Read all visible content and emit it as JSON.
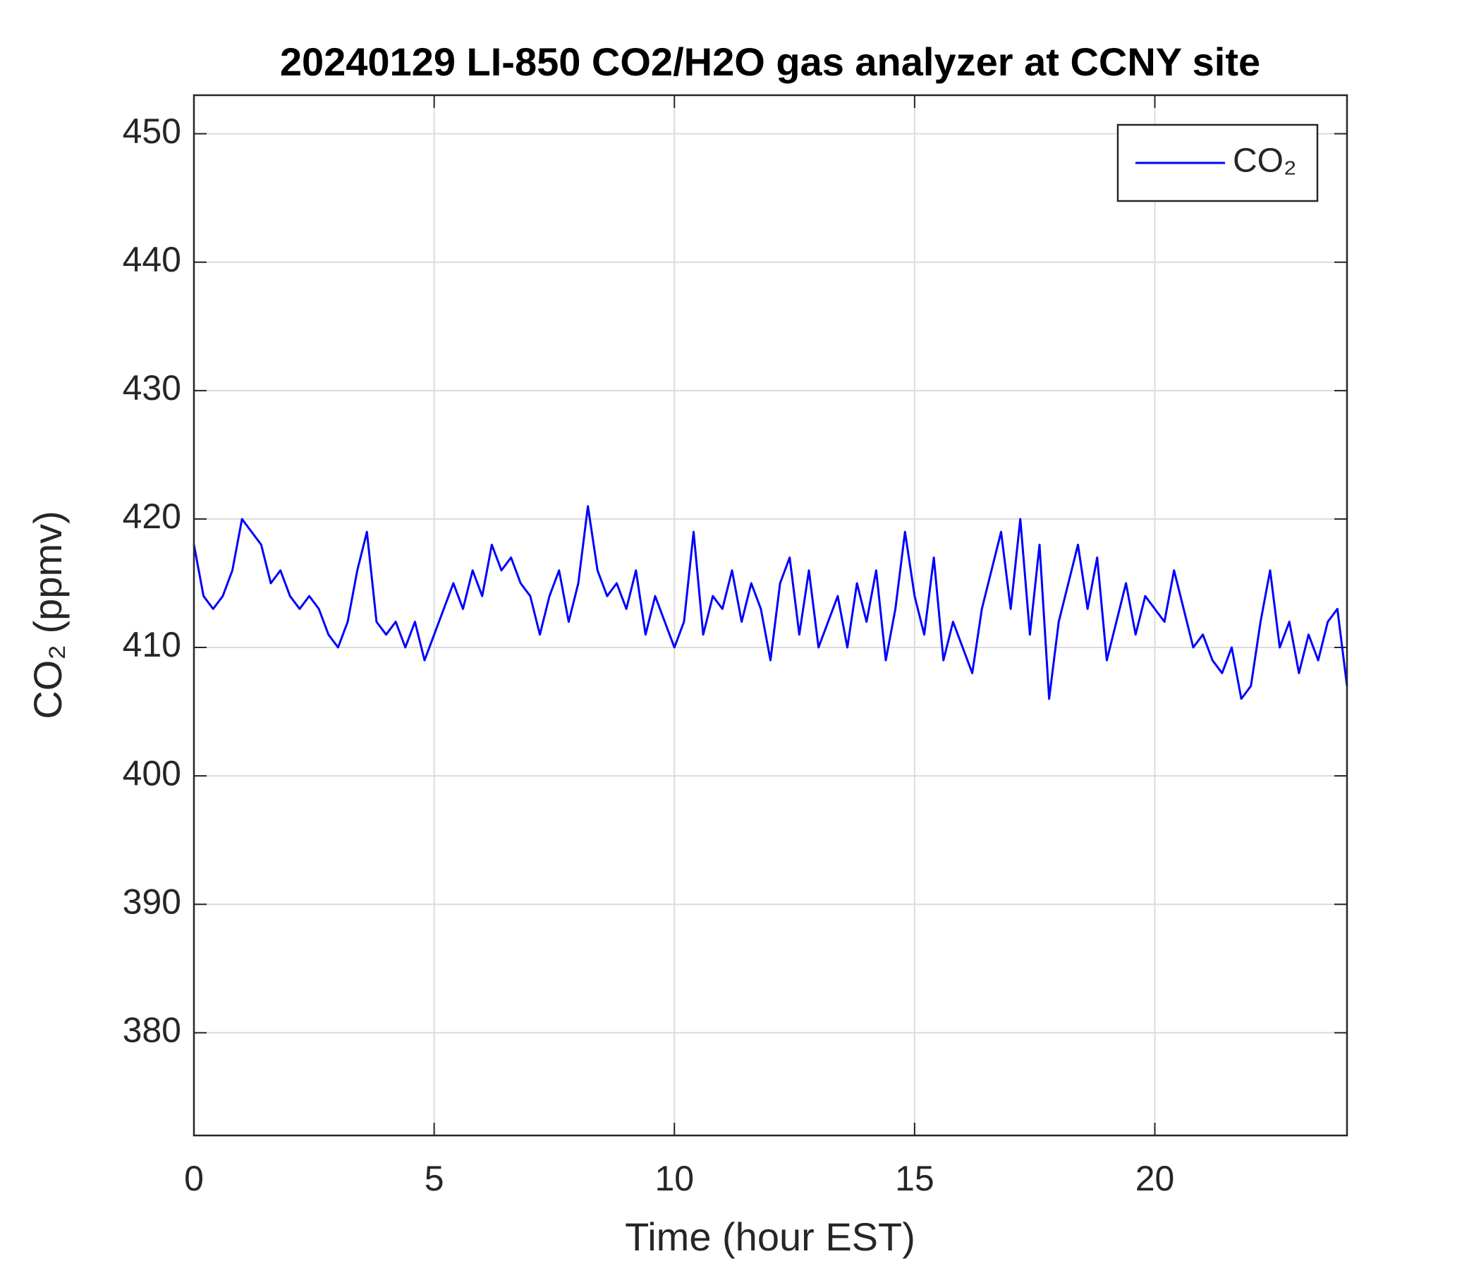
{
  "chart_data": {
    "type": "line",
    "title": "20240129 LI-850 CO2/H2O gas analyzer at CCNY site",
    "xlabel": "Time (hour EST)",
    "ylabel": "CO₂ (ppmv)",
    "x": [
      0,
      0.2,
      0.4,
      0.6,
      0.8,
      1,
      1.2,
      1.4,
      1.6,
      1.8,
      2,
      2.2,
      2.4,
      2.6,
      2.8,
      3,
      3.2,
      3.4,
      3.6,
      3.8,
      4,
      4.2,
      4.4,
      4.6,
      4.8,
      5,
      5.2,
      5.4,
      5.6,
      5.8,
      6,
      6.2,
      6.4,
      6.6,
      6.8,
      7,
      7.2,
      7.4,
      7.6,
      7.8,
      8,
      8.2,
      8.4,
      8.6,
      8.8,
      9,
      9.2,
      9.4,
      9.6,
      9.8,
      10,
      10.2,
      10.4,
      10.6,
      10.8,
      11,
      11.2,
      11.4,
      11.6,
      11.8,
      12,
      12.2,
      12.4,
      12.6,
      12.8,
      13,
      13.2,
      13.4,
      13.6,
      13.8,
      14,
      14.2,
      14.4,
      14.6,
      14.8,
      15,
      15.2,
      15.4,
      15.6,
      15.8,
      16,
      16.2,
      16.4,
      16.6,
      16.8,
      17,
      17.2,
      17.4,
      17.6,
      17.8,
      18,
      18.2,
      18.4,
      18.6,
      18.8,
      19,
      19.2,
      19.4,
      19.6,
      19.8,
      20,
      20.2,
      20.4,
      20.6,
      20.8,
      21,
      21.2,
      21.4,
      21.6,
      21.8,
      22,
      22.2,
      22.4,
      22.6,
      22.8,
      23,
      23.2,
      23.4,
      23.6,
      23.8,
      24
    ],
    "series": [
      {
        "name": "CO₂",
        "color": "#0000ff",
        "values": [
          418,
          414,
          413,
          414,
          416,
          420,
          419,
          418,
          415,
          416,
          414,
          413,
          414,
          413,
          411,
          410,
          412,
          416,
          419,
          412,
          411,
          412,
          410,
          412,
          409,
          411,
          413,
          415,
          413,
          416,
          414,
          418,
          416,
          417,
          415,
          414,
          411,
          414,
          416,
          412,
          415,
          421,
          416,
          414,
          415,
          413,
          416,
          411,
          414,
          412,
          410,
          412,
          419,
          411,
          414,
          413,
          416,
          412,
          415,
          413,
          409,
          415,
          417,
          411,
          416,
          410,
          412,
          414,
          410,
          415,
          412,
          416,
          409,
          413,
          419,
          414,
          411,
          417,
          409,
          412,
          410,
          408,
          413,
          416,
          419,
          413,
          420,
          411,
          418,
          406,
          412,
          415,
          418,
          413,
          417,
          409,
          412,
          415,
          411,
          414,
          413,
          412,
          416,
          413,
          410,
          411,
          409,
          408,
          410,
          406,
          407,
          412,
          416,
          410,
          412,
          408,
          411,
          409,
          412,
          413,
          407
        ]
      }
    ],
    "xlim": [
      0,
      24
    ],
    "ylim": [
      372,
      453
    ],
    "xticks": [
      0,
      5,
      10,
      15,
      20
    ],
    "yticks": [
      380,
      390,
      400,
      410,
      420,
      430,
      440,
      450
    ],
    "grid": true,
    "legend": "upper right"
  }
}
